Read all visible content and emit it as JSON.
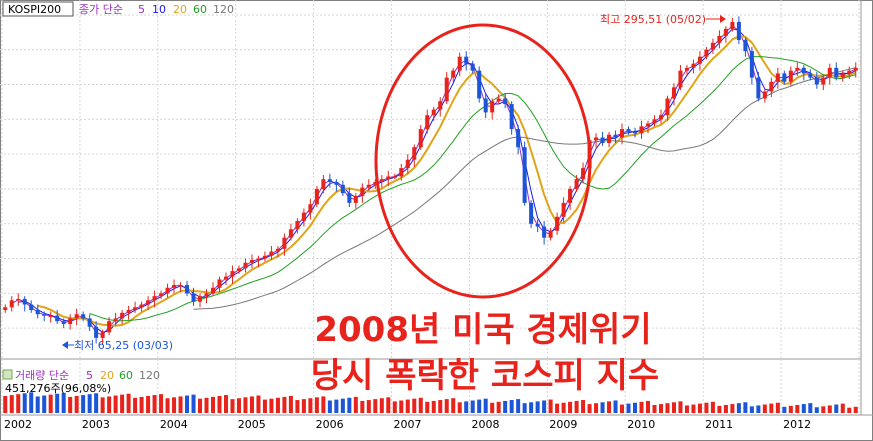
{
  "header": {
    "symbol": "KOSPI200",
    "legend_title": "종가 단순",
    "ma_periods": [
      "5",
      "10",
      "20",
      "60",
      "120"
    ],
    "ma_colors": [
      "#9b30c0",
      "#1a1aee",
      "#e0a418",
      "#23a023",
      "#777777"
    ]
  },
  "volume_header": {
    "legend_title": "거래량 단순",
    "ma_periods": [
      "5",
      "20",
      "60",
      "120"
    ],
    "ma_colors": [
      "#9b30c0",
      "#e0a418",
      "#23a023",
      "#777777"
    ],
    "value_text": "451,276주(96,08%)"
  },
  "annotations": {
    "high_label": "최고 295,51 (05/02)",
    "low_label": "최저 65,25 (03/03)",
    "overlay_line1": "2008년 미국 경제위기",
    "overlay_line2": "당시 폭락한 코스피 지수"
  },
  "colors": {
    "up": "#e8231c",
    "down": "#1d55d8",
    "overlay_text": "#e8231c",
    "circle": "#e8231c"
  },
  "chart_data": {
    "type": "candlestick",
    "title": "KOSPI200",
    "x_tick_labels": [
      "2002",
      "2003",
      "2004",
      "2005",
      "2006",
      "2007",
      "2008",
      "2009",
      "2010",
      "2011",
      "2012"
    ],
    "y_range": [
      55,
      305
    ],
    "series": [
      {
        "name": "KOSPI200 close (approx, monthly)",
        "values": [
          90,
          95,
          96,
          92,
          88,
          85,
          84,
          84,
          80,
          78,
          82,
          85,
          82,
          76,
          68,
          72,
          80,
          82,
          86,
          88,
          90,
          92,
          95,
          98,
          100,
          104,
          106,
          106,
          100,
          94,
          98,
          100,
          104,
          110,
          112,
          116,
          118,
          122,
          124,
          125,
          127,
          130,
          132,
          140,
          146,
          152,
          158,
          164,
          175,
          182,
          180,
          178,
          172,
          165,
          170,
          176,
          178,
          180,
          182,
          184,
          184,
          190,
          196,
          205,
          218,
          228,
          232,
          238,
          255,
          260,
          270,
          265,
          260,
          240,
          230,
          238,
          240,
          236,
          218,
          205,
          165,
          150,
          148,
          140,
          145,
          155,
          165,
          175,
          182,
          190,
          210,
          212,
          208,
          214,
          212,
          218,
          216,
          215,
          220,
          222,
          225,
          228,
          240,
          248,
          260,
          262,
          265,
          270,
          275,
          280,
          285,
          290,
          295,
          282,
          274,
          255,
          240,
          245,
          252,
          258,
          252,
          260,
          262,
          258,
          255,
          250,
          255,
          262,
          255,
          258,
          260,
          262
        ]
      }
    ],
    "moving_averages": [
      "MA5",
      "MA10",
      "MA20",
      "MA60",
      "MA120"
    ],
    "annotated_high": {
      "label": "최고 295,51 (05/02)",
      "value": 295.51
    },
    "annotated_low": {
      "label": "최저 65,25 (03/03)",
      "value": 65.25
    },
    "volume": {
      "last_value_label": "451,276주(96,08%)"
    }
  }
}
